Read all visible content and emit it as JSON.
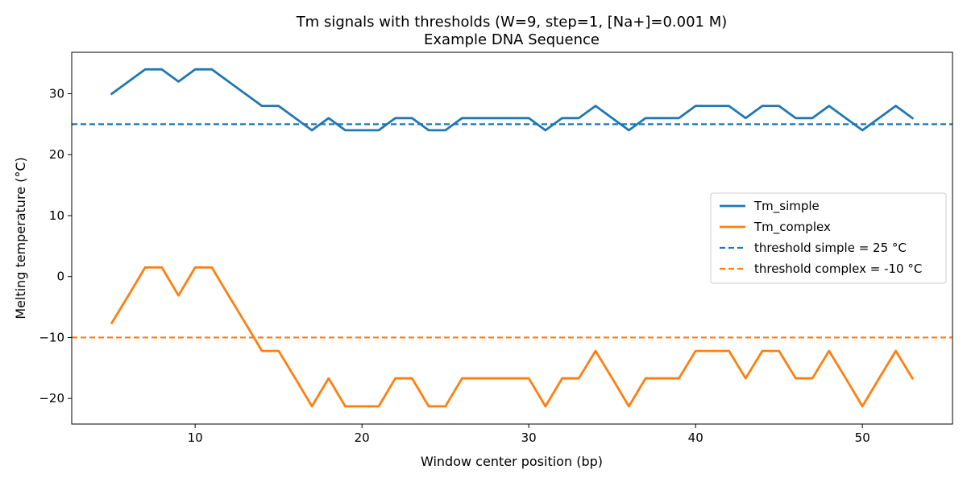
{
  "chart_data": {
    "type": "line",
    "title": "Tm signals with thresholds (W=9, step=1, [Na+]=0.001 M)",
    "subtitle": "Example DNA Sequence",
    "xlabel": "Window center position (bp)",
    "ylabel": "Melting temperature (°C)",
    "xlim": [
      2.6,
      55.4
    ],
    "ylim": [
      -24.2,
      36.8
    ],
    "xticks": [
      10,
      20,
      30,
      40,
      50
    ],
    "yticks": [
      -20,
      -10,
      0,
      10,
      20,
      30
    ],
    "xtick_labels": [
      "10",
      "20",
      "30",
      "40",
      "50"
    ],
    "ytick_labels": [
      "−20",
      "−10",
      "0",
      "10",
      "20",
      "30"
    ],
    "grid": false,
    "legend_position": "center-right",
    "x": [
      5,
      6,
      7,
      8,
      9,
      10,
      11,
      12,
      13,
      14,
      15,
      16,
      17,
      18,
      19,
      20,
      21,
      22,
      23,
      24,
      25,
      26,
      27,
      28,
      29,
      30,
      31,
      32,
      33,
      34,
      35,
      36,
      37,
      38,
      39,
      40,
      41,
      42,
      43,
      44,
      45,
      46,
      47,
      48,
      49,
      50,
      51,
      52,
      53
    ],
    "series": [
      {
        "name": "Tm_simple",
        "color": "#1f77b4",
        "style": "solid",
        "values": [
          30,
          32,
          34,
          34,
          32,
          34,
          34,
          32,
          30,
          28,
          28,
          26,
          24,
          26,
          24,
          24,
          24,
          26,
          26,
          24,
          24,
          26,
          26,
          26,
          26,
          26,
          24,
          26,
          26,
          28,
          26,
          24,
          26,
          26,
          26,
          28,
          28,
          28,
          26,
          28,
          28,
          26,
          26,
          28,
          26,
          24,
          26,
          28,
          26
        ]
      },
      {
        "name": "Tm_complex",
        "color": "#ff7f0e",
        "style": "solid",
        "values": [
          -7.6,
          -3.1,
          1.5,
          1.5,
          -3.1,
          1.5,
          1.5,
          -3.1,
          -7.6,
          -12.2,
          -12.2,
          -16.7,
          -21.3,
          -16.7,
          -21.3,
          -21.3,
          -21.3,
          -16.7,
          -16.7,
          -21.3,
          -21.3,
          -16.7,
          -16.7,
          -16.7,
          -16.7,
          -16.7,
          -21.3,
          -16.7,
          -16.7,
          -12.2,
          -16.7,
          -21.3,
          -16.7,
          -16.7,
          -16.7,
          -12.2,
          -12.2,
          -12.2,
          -16.7,
          -12.2,
          -12.2,
          -16.7,
          -16.7,
          -12.2,
          -16.7,
          -21.3,
          -16.7,
          -12.2,
          -16.7
        ]
      }
    ],
    "thresholds": [
      {
        "name": "threshold simple = 25 °C",
        "value": 25,
        "color": "#1f77b4",
        "style": "dashed"
      },
      {
        "name": "threshold complex = -10 °C",
        "value": -10,
        "color": "#ff7f0e",
        "style": "dashed"
      }
    ]
  }
}
